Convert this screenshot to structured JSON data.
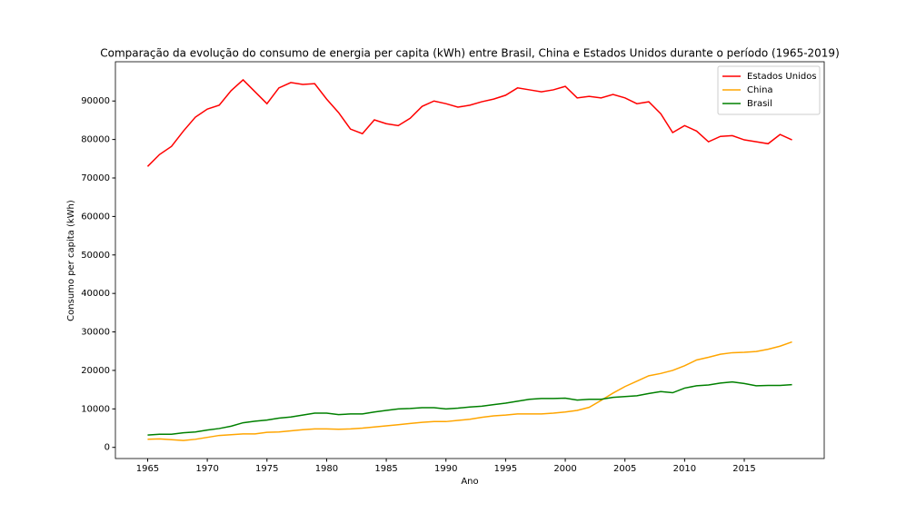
{
  "chart_data": {
    "type": "line",
    "title": "Comparação da evolução do consumo de energia per capita (kWh) entre Brasil, China e Estados Unidos durante o período (1965-2019)",
    "xlabel": "Ano",
    "ylabel": "Consumo per capita (kWh)",
    "x": [
      1965,
      1966,
      1967,
      1968,
      1969,
      1970,
      1971,
      1972,
      1973,
      1974,
      1975,
      1976,
      1977,
      1978,
      1979,
      1980,
      1981,
      1982,
      1983,
      1984,
      1985,
      1986,
      1987,
      1988,
      1989,
      1990,
      1991,
      1992,
      1993,
      1994,
      1995,
      1996,
      1997,
      1998,
      1999,
      2000,
      2001,
      2002,
      2003,
      2004,
      2005,
      2006,
      2007,
      2008,
      2009,
      2010,
      2011,
      2012,
      2013,
      2014,
      2015,
      2016,
      2017,
      2018,
      2019
    ],
    "series": [
      {
        "name": "Estados Unidos",
        "color": "#ff0000",
        "values": [
          73000,
          76100,
          78200,
          82200,
          85800,
          87900,
          88900,
          92700,
          95500,
          92400,
          89300,
          93400,
          94800,
          94300,
          94500,
          90500,
          87000,
          82700,
          81500,
          85100,
          84100,
          83600,
          85500,
          88600,
          90000,
          89300,
          88400,
          88900,
          89800,
          90500,
          91500,
          93400,
          92900,
          92400,
          92900,
          93800,
          90800,
          91200,
          90800,
          91700,
          90800,
          89300,
          89800,
          86700,
          81800,
          83600,
          82200,
          79400,
          80800,
          81000,
          79900,
          79400,
          78900,
          81300,
          79900
        ]
      },
      {
        "name": "China",
        "color": "#ffa500",
        "values": [
          2100,
          2200,
          2000,
          1800,
          2100,
          2600,
          3100,
          3300,
          3500,
          3500,
          3900,
          4000,
          4300,
          4600,
          4800,
          4800,
          4700,
          4800,
          5000,
          5300,
          5600,
          5900,
          6200,
          6500,
          6700,
          6700,
          7000,
          7300,
          7800,
          8200,
          8400,
          8700,
          8700,
          8700,
          8900,
          9200,
          9600,
          10400,
          12200,
          14100,
          15800,
          17200,
          18600,
          19200,
          20000,
          21200,
          22700,
          23400,
          24200,
          24600,
          24700,
          24900,
          25500,
          26300,
          27400
        ]
      },
      {
        "name": "Brasil",
        "color": "#008000",
        "values": [
          3200,
          3400,
          3400,
          3800,
          4000,
          4500,
          4900,
          5500,
          6400,
          6800,
          7100,
          7600,
          7900,
          8400,
          8900,
          8900,
          8500,
          8700,
          8700,
          9200,
          9600,
          10000,
          10100,
          10300,
          10300,
          10000,
          10200,
          10500,
          10700,
          11100,
          11500,
          12000,
          12500,
          12700,
          12700,
          12800,
          12300,
          12500,
          12500,
          13000,
          13200,
          13400,
          14000,
          14500,
          14200,
          15400,
          16000,
          16200,
          16700,
          17000,
          16600,
          16000,
          16100,
          16100,
          16300
        ]
      }
    ],
    "xlim": [
      1962.3,
      2021.7
    ],
    "xticks": [
      1965,
      1970,
      1975,
      1980,
      1985,
      1990,
      1995,
      2000,
      2005,
      2010,
      2015
    ],
    "ylim": [
      -2900,
      100200
    ],
    "yticks": [
      0,
      10000,
      20000,
      30000,
      40000,
      50000,
      60000,
      70000,
      80000,
      90000
    ],
    "legend": "upper right"
  }
}
